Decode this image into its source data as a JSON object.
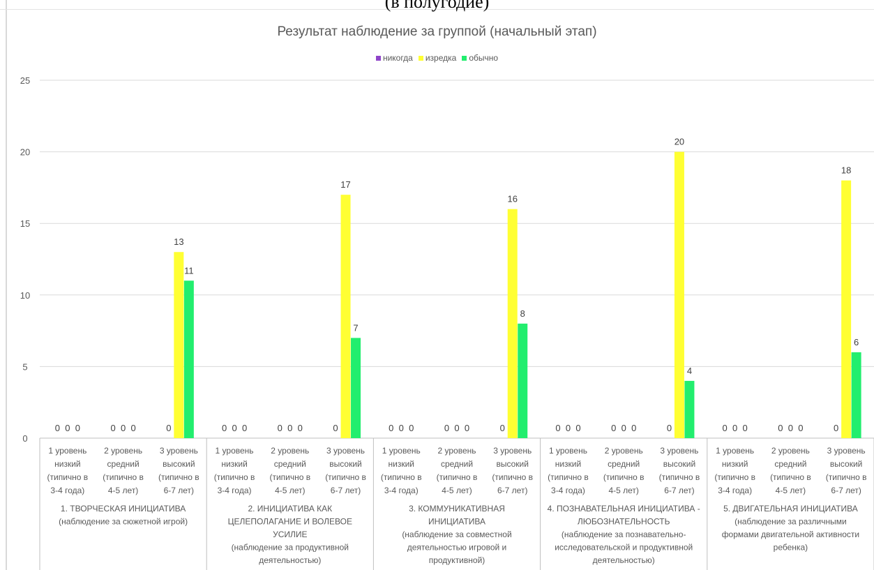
{
  "heading": "(в полугодие)",
  "colors": {
    "никогда": "#8e44c9",
    "изредка": "#ffff33",
    "обычно": "#22ee6e"
  },
  "chart_data": {
    "type": "bar",
    "title": "Результат наблюдение за группой (начальный этап)",
    "xlabel": "",
    "ylabel": "",
    "ylim": [
      0,
      25
    ],
    "yticks": [
      0,
      5,
      10,
      15,
      20,
      25
    ],
    "grid": true,
    "legend_position": "top",
    "level_labels": [
      [
        "1 уровень",
        "низкий",
        "(типично в",
        "3-4 года)"
      ],
      [
        "2 уровень",
        "средний",
        "(типично в",
        "4-5 лет)"
      ],
      [
        "3 уровень",
        "высокий",
        "(типично в",
        "6-7 лет)"
      ]
    ],
    "groups": [
      {
        "name_lines": [
          "1. ТВОРЧЕСКАЯ ИНИЦИАТИВА",
          "(наблюдение за сюжетной игрой)"
        ]
      },
      {
        "name_lines": [
          "2. ИНИЦИАТИВА КАК",
          "ЦЕЛЕПОЛАГАНИЕ И ВОЛЕВОЕ",
          "УСИЛИЕ",
          "(наблюдение за продуктивной",
          "деятельностью)"
        ]
      },
      {
        "name_lines": [
          "3. КОММУНИКАТИВНАЯ",
          "ИНИЦИАТИВА",
          "(наблюдение за совместной",
          "деятельностью игровой и",
          "продуктивной)"
        ]
      },
      {
        "name_lines": [
          "4. ПОЗНАВАТЕЛЬНАЯ ИНИЦИАТИВА -",
          "ЛЮБОЗНАТЕЛЬНОСТЬ",
          "(наблюдение за познавательно-",
          "исследовательской и продуктивной",
          "деятельностью)"
        ]
      },
      {
        "name_lines": [
          "5. ДВИГАТЕЛЬНАЯ ИНИЦИАТИВА",
          "(наблюдение за различными",
          "формами двигательной активности",
          "ребенка)"
        ]
      }
    ],
    "series": [
      {
        "name": "никогда",
        "values": [
          0,
          0,
          0,
          0,
          0,
          0,
          0,
          0,
          0,
          0,
          0,
          0,
          0,
          0,
          0
        ]
      },
      {
        "name": "изредка",
        "values": [
          0,
          0,
          13,
          0,
          0,
          17,
          0,
          0,
          16,
          0,
          0,
          20,
          0,
          0,
          18
        ]
      },
      {
        "name": "обычно",
        "values": [
          0,
          0,
          11,
          0,
          0,
          7,
          0,
          0,
          8,
          0,
          0,
          4,
          0,
          0,
          6
        ]
      }
    ]
  }
}
